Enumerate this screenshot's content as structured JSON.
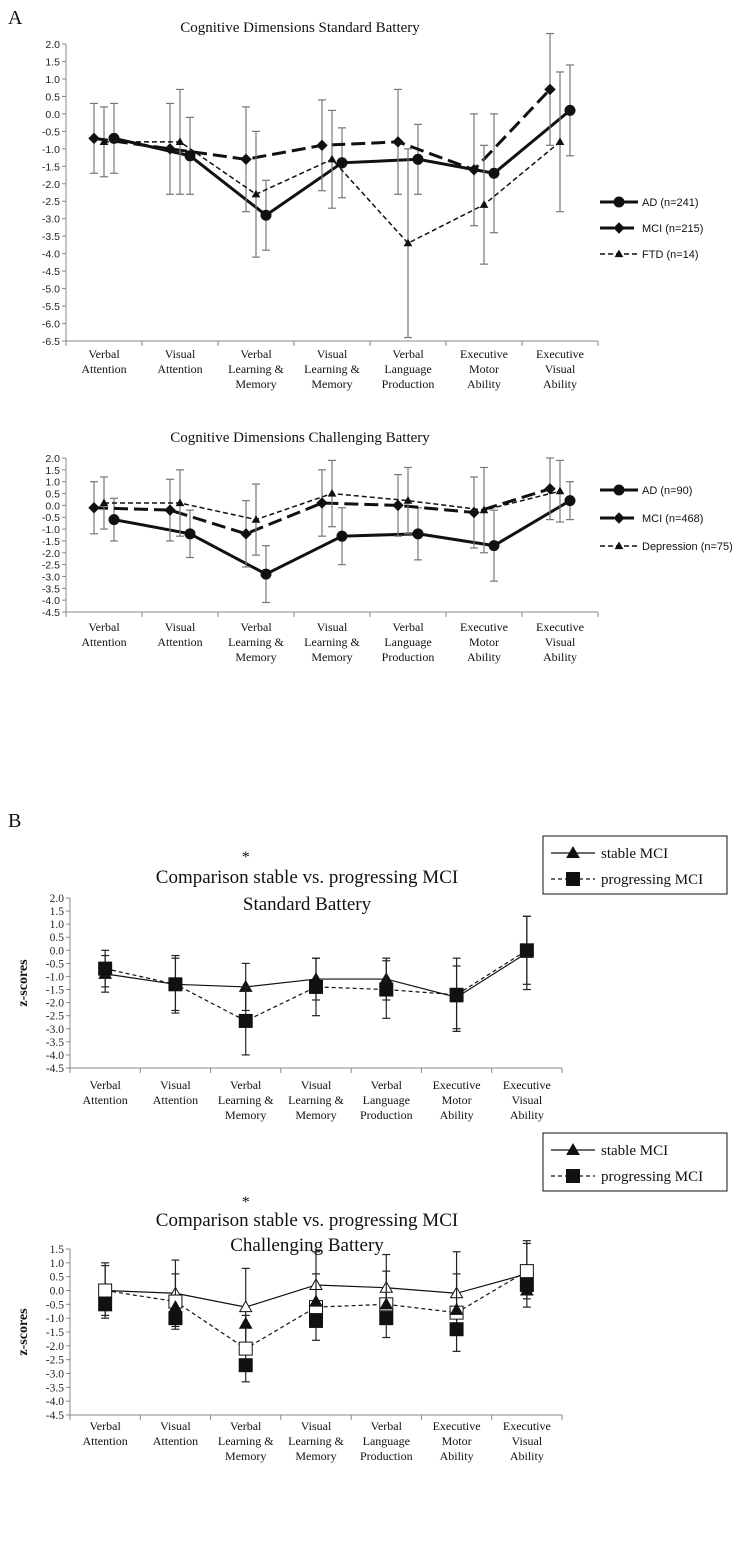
{
  "panel_labels": [
    "A",
    "B"
  ],
  "categories": [
    [
      "Verbal",
      "Attention"
    ],
    [
      "Visual",
      "Attention"
    ],
    [
      "Verbal",
      "Learning &",
      "Memory"
    ],
    [
      "Visual",
      "Learning &",
      "Memory"
    ],
    [
      "Verbal",
      "Language",
      "Production"
    ],
    [
      "Executive",
      "Motor",
      "Ability"
    ],
    [
      "Executive",
      "Visual",
      "Ability"
    ]
  ],
  "chart_data": [
    {
      "type": "line",
      "title": "Cognitive Dimensions Standard Battery",
      "ylabel": "",
      "ylim": [
        -6.5,
        2.0
      ],
      "yticks": [
        "2.0",
        "1.5",
        "1.0",
        "0.5",
        "0.0",
        "-0.5",
        "-1.0",
        "-1.5",
        "-2.0",
        "-2.5",
        "-3.0",
        "-3.5",
        "-4.0",
        "-4.5",
        "-5.0",
        "-5.5",
        "-6.0",
        "-6.5"
      ],
      "legend_position": "right",
      "series": [
        {
          "name": "AD (n=241)",
          "values": [
            -0.7,
            -1.2,
            -2.9,
            -1.4,
            -1.3,
            -1.7,
            0.1
          ],
          "err": [
            1.0,
            1.1,
            1.0,
            1.0,
            1.0,
            1.7,
            1.3
          ]
        },
        {
          "name": "MCI (n=215)",
          "values": [
            -0.7,
            -1.0,
            -1.3,
            -0.9,
            -0.8,
            -1.6,
            0.7
          ],
          "err": [
            1.0,
            1.3,
            1.5,
            1.3,
            1.5,
            1.6,
            1.6
          ]
        },
        {
          "name": "FTD (n=14)",
          "values": [
            -0.8,
            -0.8,
            -2.3,
            -1.3,
            -3.7,
            -2.6,
            -0.8
          ],
          "err": [
            1.0,
            1.5,
            1.8,
            1.4,
            2.7,
            1.7,
            2.0
          ]
        }
      ]
    },
    {
      "type": "line",
      "title": "Cognitive Dimensions Challenging Battery",
      "ylabel": "",
      "ylim": [
        -4.5,
        2.0
      ],
      "yticks": [
        "2.0",
        "1.5",
        "1.0",
        "0.5",
        "0.0",
        "-0.5",
        "-1.0",
        "-1.5",
        "-2.0",
        "-2.5",
        "-3.0",
        "-3.5",
        "-4.0",
        "-4.5"
      ],
      "legend_position": "right",
      "series": [
        {
          "name": "AD (n=90)",
          "values": [
            -0.6,
            -1.2,
            -2.9,
            -1.3,
            -1.2,
            -1.7,
            0.2
          ],
          "err": [
            0.9,
            1.0,
            1.2,
            1.2,
            1.1,
            1.5,
            0.8
          ]
        },
        {
          "name": "MCI (n=468)",
          "values": [
            -0.1,
            -0.2,
            -1.2,
            0.1,
            0.0,
            -0.3,
            0.7
          ],
          "err": [
            1.1,
            1.3,
            1.4,
            1.4,
            1.3,
            1.5,
            1.3
          ]
        },
        {
          "name": "Depression (n=75)",
          "values": [
            0.1,
            0.1,
            -0.6,
            0.5,
            0.2,
            -0.2,
            0.6
          ],
          "err": [
            1.1,
            1.4,
            1.5,
            1.4,
            1.4,
            1.8,
            1.3
          ]
        }
      ]
    },
    {
      "type": "line",
      "title": "Comparison stable vs. progressing MCI",
      "subtitle": "Standard Battery",
      "ylabel": "z-scores",
      "ylim": [
        -4.5,
        2.0
      ],
      "yticks": [
        "2.0",
        "1.5",
        "1.0",
        "0.5",
        "0.0",
        "-0.5",
        "-1.0",
        "-1.5",
        "-2.0",
        "-2.5",
        "-3.0",
        "-3.5",
        "-4.0",
        "-4.5"
      ],
      "legend_position": "top-right",
      "annotation": "*",
      "series": [
        {
          "name": "stable MCI",
          "values": [
            -0.9,
            -1.3,
            -1.4,
            -1.1,
            -1.1,
            -1.8,
            -0.1
          ],
          "err": [
            0.7,
            1.0,
            0.9,
            0.8,
            0.8,
            1.2,
            1.4
          ]
        },
        {
          "name": "progressing MCI",
          "values": [
            -0.7,
            -1.3,
            -2.7,
            -1.4,
            -1.5,
            -1.7,
            0.0
          ],
          "err": [
            0.7,
            1.1,
            1.3,
            1.1,
            1.1,
            1.4,
            1.3
          ]
        }
      ]
    },
    {
      "type": "line",
      "title": "Comparison stable vs. progressing MCI",
      "subtitle": "Challenging Battery",
      "ylabel": "z-scores",
      "ylim": [
        -4.5,
        1.5
      ],
      "yticks": [
        "1.5",
        "1.0",
        "0.5",
        "0.0",
        "-0.5",
        "-1.0",
        "-1.5",
        "-2.0",
        "-2.5",
        "-3.0",
        "-3.5",
        "-4.0",
        "-4.5"
      ],
      "legend_position": "top-right",
      "annotation": "*",
      "series": [
        {
          "name": "stable MCI",
          "values": [
            0.0,
            -0.1,
            -0.6,
            0.2,
            0.1,
            -0.1,
            0.6
          ],
          "err": [
            1.0,
            1.2,
            1.4,
            1.2,
            1.2,
            1.5,
            1.2
          ]
        },
        {
          "name": "progressing MCI",
          "values": [
            0.0,
            -0.4,
            -2.1,
            -0.6,
            -0.5,
            -0.8,
            0.7
          ],
          "err": [
            0.9,
            1.0,
            1.2,
            1.2,
            1.2,
            1.4,
            1.0
          ]
        }
      ]
    }
  ]
}
